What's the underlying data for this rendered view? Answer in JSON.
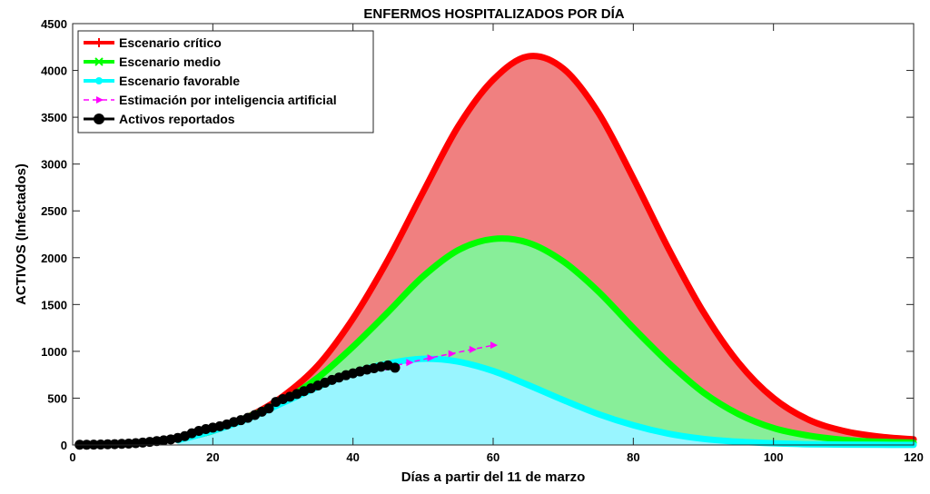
{
  "chart_data": {
    "type": "area",
    "title": "ENFERMOS HOSPITALIZADOS POR DÍA",
    "xlabel": "Días a partir del 11 de marzo",
    "ylabel": "ACTIVOS (Infectados)",
    "xlim": [
      0,
      120
    ],
    "ylim": [
      0,
      4500
    ],
    "xticks": [
      0,
      20,
      40,
      60,
      80,
      100,
      120
    ],
    "yticks": [
      0,
      500,
      1000,
      1500,
      2000,
      2500,
      3000,
      3500,
      4000,
      4500
    ],
    "grid": false,
    "legend_position": "top-left",
    "series": [
      {
        "name": "Escenario crítico",
        "color": "#ff0000",
        "fill": "#f08080",
        "marker": "plus",
        "x": [
          15,
          20,
          25,
          30,
          35,
          40,
          45,
          50,
          55,
          60,
          65,
          70,
          75,
          80,
          85,
          90,
          95,
          100,
          105,
          110,
          115,
          120
        ],
        "y": [
          60,
          150,
          300,
          520,
          850,
          1350,
          1980,
          2700,
          3400,
          3900,
          4150,
          4020,
          3550,
          2850,
          2100,
          1420,
          880,
          500,
          270,
          150,
          90,
          60
        ]
      },
      {
        "name": "Escenario medio",
        "color": "#00ff00",
        "fill": "#88ee99",
        "marker": "x",
        "x": [
          15,
          20,
          25,
          30,
          35,
          40,
          45,
          50,
          55,
          60,
          65,
          70,
          75,
          80,
          85,
          90,
          95,
          100,
          105,
          110,
          115,
          120
        ],
        "y": [
          60,
          150,
          300,
          470,
          720,
          1050,
          1420,
          1800,
          2080,
          2200,
          2160,
          1960,
          1640,
          1250,
          880,
          560,
          330,
          180,
          100,
          55,
          35,
          25
        ]
      },
      {
        "name": "Escenario favorable",
        "color": "#00ffff",
        "fill": "#99f5ff",
        "marker": "circle",
        "x": [
          15,
          20,
          25,
          30,
          35,
          40,
          45,
          50,
          55,
          60,
          65,
          70,
          75,
          80,
          85,
          90,
          95,
          100,
          105,
          110,
          115,
          120
        ],
        "y": [
          50,
          150,
          280,
          450,
          620,
          770,
          870,
          920,
          890,
          790,
          640,
          480,
          330,
          210,
          120,
          65,
          35,
          18,
          8,
          4,
          2,
          1
        ]
      },
      {
        "name": "Estimación por inteligencia artificial",
        "color": "#ff00ff",
        "marker": "triangle-right",
        "line_style": "dashed",
        "x": [
          45,
          48,
          51,
          54,
          57,
          60
        ],
        "y": [
          830,
          880,
          930,
          975,
          1020,
          1065
        ]
      },
      {
        "name": "Activos reportados",
        "color": "#000000",
        "marker": "filled-circle",
        "x": [
          1,
          2,
          3,
          4,
          5,
          6,
          7,
          8,
          9,
          10,
          11,
          12,
          13,
          14,
          15,
          16,
          17,
          18,
          19,
          20,
          21,
          22,
          23,
          24,
          25,
          26,
          27,
          28,
          29,
          30,
          31,
          32,
          33,
          34,
          35,
          36,
          37,
          38,
          39,
          40,
          41,
          42,
          43,
          44,
          45,
          46
        ],
        "y": [
          2,
          3,
          4,
          5,
          7,
          9,
          12,
          15,
          20,
          26,
          33,
          41,
          50,
          60,
          75,
          95,
          125,
          150,
          170,
          185,
          200,
          220,
          245,
          265,
          290,
          320,
          355,
          390,
          460,
          490,
          515,
          545,
          575,
          605,
          635,
          665,
          695,
          720,
          745,
          765,
          785,
          805,
          820,
          835,
          850,
          825
        ]
      }
    ]
  }
}
